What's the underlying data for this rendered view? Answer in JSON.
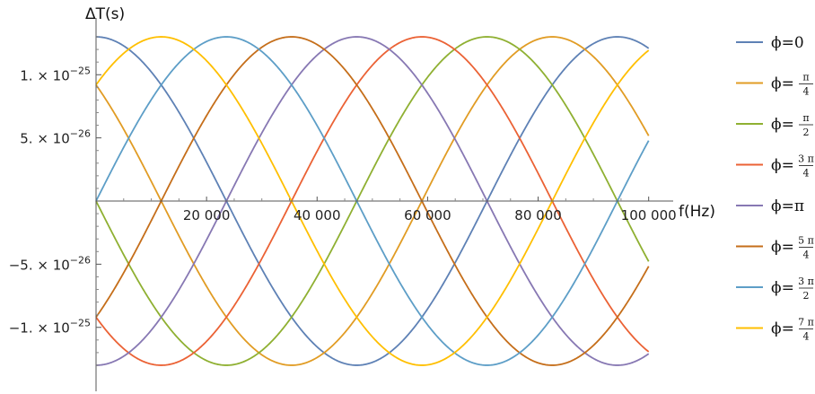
{
  "chart_data": {
    "type": "line",
    "title": "",
    "xlabel": "f(Hz)",
    "ylabel": "ΔT(s)",
    "xlim": [
      0,
      102000
    ],
    "ylim": [
      -1.35e-25,
      1.35e-25
    ],
    "grid": false,
    "legend": "right",
    "amplitude": 1.3e-25,
    "frequency_hz": 1.06e-05,
    "x_ticks": [
      {
        "value": 20000,
        "label": "20 000"
      },
      {
        "value": 40000,
        "label": "40 000"
      },
      {
        "value": 60000,
        "label": "60 000"
      },
      {
        "value": 80000,
        "label": "80 000"
      },
      {
        "value": 100000,
        "label": "100 000"
      }
    ],
    "y_ticks": [
      {
        "value": 1e-25,
        "mant": "1. × 10",
        "exp": "−25"
      },
      {
        "value": 5e-26,
        "mant": "5. × 10",
        "exp": "−26"
      },
      {
        "value": -5e-26,
        "mant": "−5. × 10",
        "exp": "−26"
      },
      {
        "value": -1e-25,
        "mant": "−1. × 10",
        "exp": "−25"
      }
    ],
    "series": [
      {
        "phase": 0,
        "lhs": "ϕ=",
        "num": "",
        "den": "",
        "plain": "0",
        "color": "#5e81b5"
      },
      {
        "phase": 0.7854,
        "lhs": "ϕ=",
        "num": "π",
        "den": "4",
        "plain": "",
        "color": "#e19c24"
      },
      {
        "phase": 1.5708,
        "lhs": "ϕ=",
        "num": "π",
        "den": "2",
        "plain": "",
        "color": "#8fb032"
      },
      {
        "phase": 2.3562,
        "lhs": "ϕ=",
        "num": "3 π",
        "den": "4",
        "plain": "",
        "color": "#eb6235"
      },
      {
        "phase": 3.1416,
        "lhs": "ϕ=",
        "num": "",
        "den": "",
        "plain": "π",
        "color": "#8778b3"
      },
      {
        "phase": 3.927,
        "lhs": "ϕ=",
        "num": "5 π",
        "den": "4",
        "plain": "",
        "color": "#c56e1a"
      },
      {
        "phase": 4.7124,
        "lhs": "ϕ=",
        "num": "3 π",
        "den": "2",
        "plain": "",
        "color": "#5d9ec7"
      },
      {
        "phase": 5.4978,
        "lhs": "ϕ=",
        "num": "7 π",
        "den": "4",
        "plain": "",
        "color": "#ffbf00"
      }
    ]
  }
}
